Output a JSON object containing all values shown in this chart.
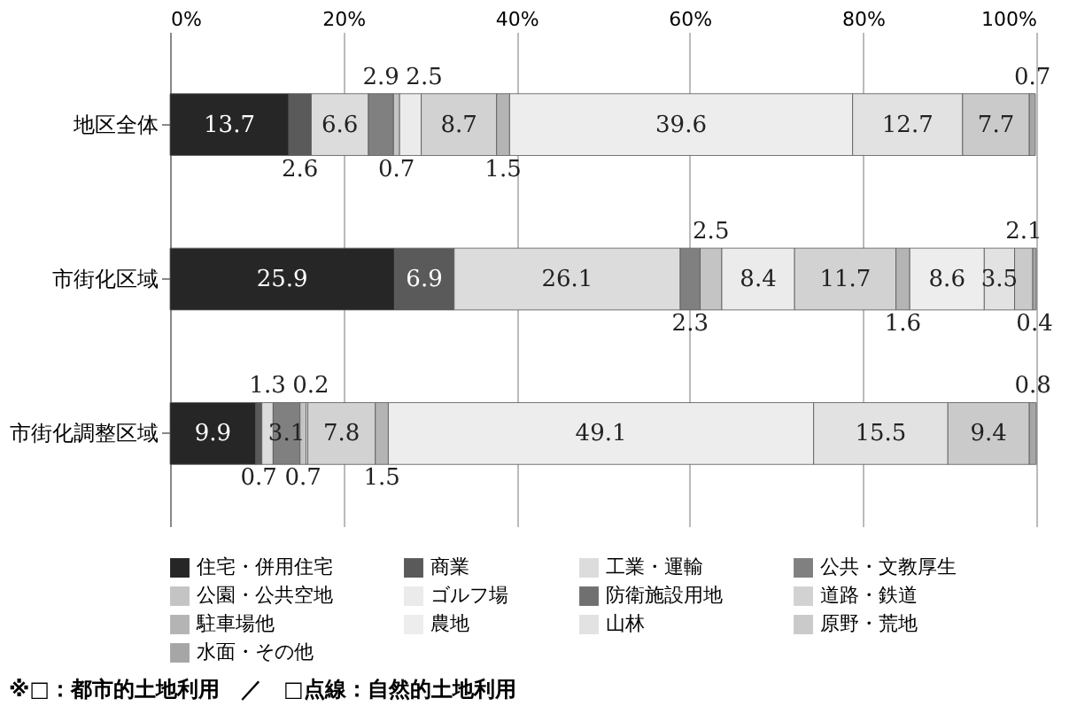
{
  "chart_data": {
    "type": "bar",
    "orientation": "horizontal",
    "stacked": true,
    "categories": [
      "地区全体",
      "市街化区域",
      "市街化調整区域"
    ],
    "series": [
      {
        "name": "住宅・併用住宅",
        "color": "#262626",
        "values": [
          13.7,
          25.9,
          9.9
        ]
      },
      {
        "name": "商業",
        "color": "#5a5a5a",
        "values": [
          2.6,
          6.9,
          0.7
        ]
      },
      {
        "name": "工業・運輸",
        "color": "#dcdcdc",
        "values": [
          6.6,
          26.1,
          1.3
        ]
      },
      {
        "name": "公共・文教厚生",
        "color": "#808080",
        "values": [
          2.9,
          2.3,
          3.1
        ]
      },
      {
        "name": "公園・公共空地",
        "color": "#c4c4c4",
        "values": [
          0.7,
          2.5,
          0.7
        ]
      },
      {
        "name": "ゴルフ場",
        "color": "#ebebeb",
        "values": [
          2.5,
          8.4,
          0.2
        ]
      },
      {
        "name": "防衛施設用地",
        "color": "#707070",
        "values": [
          null,
          null,
          null
        ]
      },
      {
        "name": "道路・鉄道",
        "color": "#d2d2d2",
        "values": [
          8.7,
          11.7,
          7.8
        ]
      },
      {
        "name": "駐車場他",
        "color": "#b4b4b4",
        "values": [
          1.5,
          1.6,
          1.5
        ]
      },
      {
        "name": "農地",
        "color": "#ededed",
        "values": [
          39.6,
          8.6,
          49.1
        ]
      },
      {
        "name": "山林",
        "color": "#e2e2e2",
        "values": [
          12.7,
          3.5,
          15.5
        ]
      },
      {
        "name": "原野・荒地",
        "color": "#cacaca",
        "values": [
          7.7,
          2.1,
          9.4
        ]
      },
      {
        "name": "水面・その他",
        "color": "#a6a6a6",
        "values": [
          0.7,
          0.4,
          0.8
        ]
      }
    ],
    "xlim": [
      0,
      100
    ],
    "xticks": [
      {
        "value": 0,
        "label": "0%"
      },
      {
        "value": 20,
        "label": "20%"
      },
      {
        "value": 40,
        "label": "40%"
      },
      {
        "value": 60,
        "label": "60%"
      },
      {
        "value": 80,
        "label": "80%"
      },
      {
        "value": 100,
        "label": "100%"
      }
    ],
    "grid": "x",
    "legend": "bottom",
    "data_labels": true,
    "annotations": [
      "※□：都市的土地利用　／　□点線：自然的土地利用"
    ]
  }
}
